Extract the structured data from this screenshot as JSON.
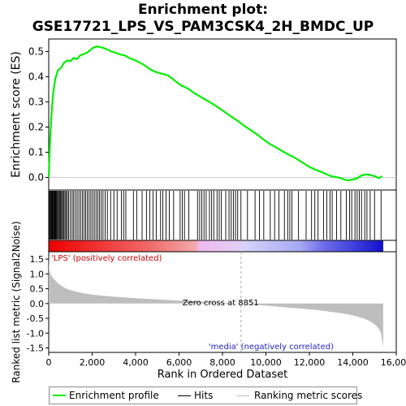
{
  "title_line1": "Enrichment plot:",
  "title_line2": "GSE17721_LPS_VS_PAM3CSK4_2H_BMDC_UP",
  "legend": [
    {
      "label": "Enrichment profile",
      "color": "#00ee00"
    },
    {
      "label": "Hits",
      "color": "#000000"
    },
    {
      "label": "Ranking metric scores",
      "color": "#bebebe"
    }
  ],
  "chart_data": {
    "type": "line",
    "xlabel": "Rank in Ordered Dataset",
    "xlim": [
      0,
      16000
    ],
    "xticks": [
      0,
      2000,
      4000,
      6000,
      8000,
      10000,
      12000,
      14000,
      16000
    ],
    "xtick_labels": [
      "0",
      "2,000",
      "4,000",
      "6,000",
      "8,000",
      "10,000",
      "12,000",
      "14,000",
      "16,000"
    ],
    "es_panel": {
      "ylabel": "Enrichment score (ES)",
      "ylim": [
        -0.05,
        0.55
      ],
      "yticks": [
        0.0,
        0.1,
        0.2,
        0.3,
        0.4,
        0.5
      ],
      "ytick_labels": [
        "0.0",
        "0.1",
        "0.2",
        "0.3",
        "0.4",
        "0.5"
      ],
      "series": [
        {
          "name": "Enrichment profile",
          "color": "#00ee00",
          "x": [
            0,
            60,
            120,
            200,
            300,
            420,
            560,
            700,
            860,
            1000,
            1150,
            1300,
            1450,
            1600,
            1750,
            1900,
            2050,
            2200,
            2350,
            2500,
            2700,
            2900,
            3100,
            3300,
            3500,
            3700,
            3900,
            4100,
            4300,
            4500,
            4700,
            4900,
            5100,
            5300,
            5500,
            5700,
            5900,
            6100,
            6300,
            6500,
            6700,
            6900,
            7200,
            7500,
            7800,
            8100,
            8400,
            8700,
            8851,
            9000,
            9300,
            9600,
            9900,
            10200,
            10500,
            10800,
            11100,
            11400,
            11700,
            12000,
            12300,
            12600,
            12800,
            13000,
            13200,
            13400,
            13600,
            13800,
            14000,
            14200,
            14400,
            14600,
            14800,
            15000,
            15200,
            15350
          ],
          "y": [
            0.0,
            0.14,
            0.24,
            0.33,
            0.39,
            0.425,
            0.435,
            0.455,
            0.465,
            0.462,
            0.475,
            0.47,
            0.485,
            0.49,
            0.495,
            0.505,
            0.515,
            0.52,
            0.518,
            0.515,
            0.508,
            0.5,
            0.495,
            0.488,
            0.485,
            0.475,
            0.468,
            0.46,
            0.452,
            0.44,
            0.428,
            0.42,
            0.415,
            0.41,
            0.405,
            0.392,
            0.378,
            0.365,
            0.358,
            0.348,
            0.335,
            0.325,
            0.31,
            0.295,
            0.278,
            0.26,
            0.242,
            0.225,
            0.215,
            0.205,
            0.188,
            0.17,
            0.15,
            0.132,
            0.118,
            0.102,
            0.088,
            0.075,
            0.058,
            0.042,
            0.03,
            0.02,
            0.012,
            0.005,
            0.002,
            -0.002,
            -0.008,
            -0.012,
            -0.008,
            -0.004,
            0.008,
            0.012,
            0.01,
            0.005,
            -0.003,
            0.005
          ]
        }
      ]
    },
    "ranked_panel": {
      "ylabel": "Ranked list metric (Signal2Noise)",
      "ylim": [
        -1.65,
        1.75
      ],
      "yticks": [
        -1.5,
        -1.0,
        -0.5,
        0.0,
        0.5,
        1.0,
        1.5
      ],
      "ytick_labels": [
        "-1.5",
        "-1.0",
        "-0.5",
        "0.0",
        "0.5",
        "1.0",
        "1.5"
      ],
      "n_genes": 15400,
      "zero_cross": 8851,
      "zero_cross_label": "Zero cross at 8851",
      "pos_label": "'LPS' (positively correlated)",
      "neg_label": "'media' (negatively correlated)",
      "series": [
        {
          "name": "Ranking metric scores",
          "color": "#bebebe",
          "x": [
            0,
            10,
            30,
            60,
            100,
            200,
            350,
            500,
            750,
            1000,
            1500,
            2000,
            2500,
            3000,
            4000,
            5000,
            6000,
            7000,
            8000,
            8851,
            9500,
            10500,
            11500,
            12500,
            13500,
            14000,
            14500,
            14800,
            15000,
            15200,
            15300,
            15360,
            15400
          ],
          "y": [
            1.6,
            1.3,
            1.15,
            1.05,
            0.97,
            0.86,
            0.74,
            0.64,
            0.52,
            0.45,
            0.36,
            0.3,
            0.26,
            0.23,
            0.18,
            0.14,
            0.1,
            0.07,
            0.03,
            0.0,
            -0.04,
            -0.1,
            -0.16,
            -0.23,
            -0.33,
            -0.4,
            -0.5,
            -0.6,
            -0.7,
            -0.85,
            -1.0,
            -1.3,
            -1.5
          ]
        }
      ]
    },
    "hits": [
      20,
      60,
      90,
      120,
      150,
      180,
      210,
      240,
      270,
      300,
      330,
      360,
      400,
      440,
      480,
      520,
      560,
      600,
      650,
      700,
      750,
      800,
      860,
      920,
      1000,
      1080,
      1150,
      1230,
      1310,
      1390,
      1470,
      1550,
      1630,
      1700,
      1780,
      1860,
      1940,
      2020,
      2100,
      2180,
      2260,
      2340,
      2420,
      2500,
      2600,
      2700,
      2850,
      3000,
      3150,
      3350,
      3450,
      3550,
      3900,
      4050,
      4300,
      4500,
      4650,
      4800,
      4950,
      5150,
      5250,
      5400,
      5550,
      5750,
      6050,
      6150,
      6250,
      6450,
      6850,
      6950,
      7050,
      7150,
      7250,
      7400,
      7500,
      7600,
      7750,
      7850,
      7950,
      8150,
      8300,
      8400,
      8500,
      8600,
      8700,
      8850,
      9150,
      9500,
      9700,
      9900,
      10200,
      10400,
      10600,
      10850,
      11000,
      11100,
      11200,
      11500,
      11850,
      12100,
      12250,
      12400,
      12650,
      12800,
      12950,
      13050,
      13250,
      13450,
      13700,
      13850,
      13950,
      14100,
      14200,
      14300,
      14400,
      14550,
      14650,
      14800,
      15000,
      15300
    ]
  }
}
